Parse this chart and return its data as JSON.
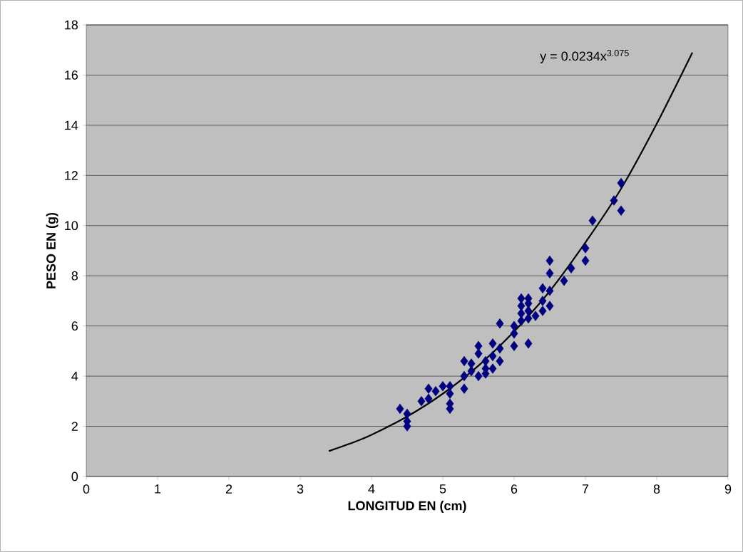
{
  "chart_data": {
    "type": "scatter",
    "xlabel": "LONGITUD EN (cm)",
    "ylabel": "PESO EN (g)",
    "xlim": [
      0,
      9
    ],
    "ylim": [
      0,
      18
    ],
    "xticks": [
      0,
      1,
      2,
      3,
      4,
      5,
      6,
      7,
      8,
      9
    ],
    "yticks": [
      0,
      2,
      4,
      6,
      8,
      10,
      12,
      14,
      16,
      18
    ],
    "grid": "y",
    "marker": "diamond",
    "series": [
      {
        "color": "#000080",
        "x": [
          4.4,
          4.5,
          4.5,
          4.5,
          4.7,
          4.8,
          4.8,
          4.9,
          5.0,
          5.1,
          5.1,
          5.1,
          5.1,
          5.3,
          5.3,
          5.3,
          5.4,
          5.4,
          5.5,
          5.5,
          5.5,
          5.6,
          5.6,
          5.6,
          5.7,
          5.7,
          5.7,
          5.8,
          5.8,
          5.8,
          6.0,
          6.0,
          6.0,
          6.1,
          6.1,
          6.1,
          6.1,
          6.2,
          6.2,
          6.2,
          6.2,
          6.2,
          6.3,
          6.4,
          6.4,
          6.4,
          6.5,
          6.5,
          6.5,
          6.5,
          6.7,
          6.8,
          7.0,
          7.0,
          7.1,
          7.4,
          7.5,
          7.5
        ],
        "values": [
          2.7,
          2.5,
          2.2,
          2.0,
          3.0,
          3.5,
          3.1,
          3.4,
          3.6,
          3.6,
          3.3,
          2.9,
          2.7,
          4.6,
          4.0,
          3.5,
          4.5,
          4.2,
          5.2,
          4.9,
          4.0,
          4.6,
          4.3,
          4.1,
          5.3,
          4.8,
          4.3,
          6.1,
          5.1,
          4.6,
          6.0,
          5.7,
          5.2,
          7.1,
          6.8,
          6.5,
          6.2,
          7.1,
          6.9,
          6.6,
          6.3,
          5.3,
          6.4,
          7.5,
          7.0,
          6.6,
          8.6,
          8.1,
          7.4,
          6.8,
          7.8,
          8.3,
          9.1,
          8.6,
          10.2,
          11.0,
          11.7,
          10.6
        ]
      },
      {
        "type": "line",
        "color": "#000000",
        "marker": "none",
        "x": [
          3.4,
          3.7,
          4.0,
          4.5,
          5.0,
          5.5,
          6.0,
          6.5,
          7.0,
          7.5,
          8.0,
          8.5
        ],
        "values": [
          1.01,
          1.31,
          1.66,
          2.39,
          3.3,
          4.42,
          5.78,
          7.39,
          9.33,
          11.47,
          14.06,
          16.9
        ]
      }
    ],
    "annotations": [
      "y = 0.0234x$^{3.075}$"
    ]
  }
}
